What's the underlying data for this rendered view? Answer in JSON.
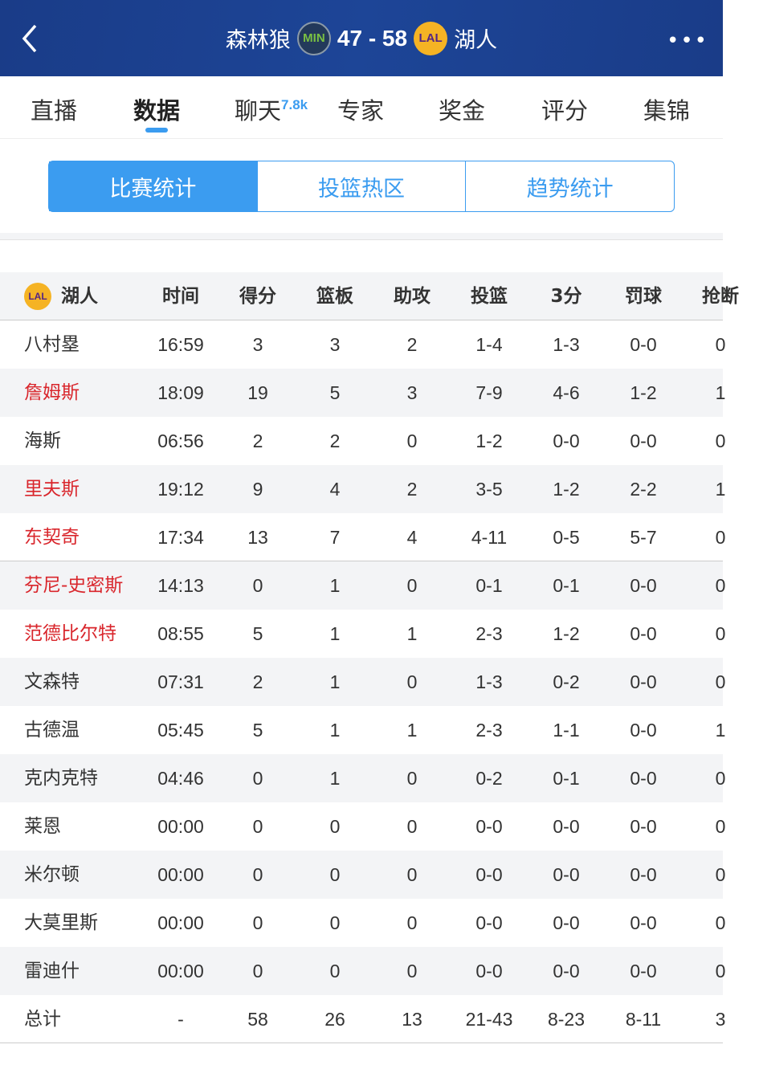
{
  "header": {
    "home_team": "森林狼",
    "home_abbr": "MIN",
    "score": "47 - 58",
    "away_abbr": "LAL",
    "away_team": "湖人",
    "back_icon": "chevron-left-icon",
    "more_icon": "more-dots-icon"
  },
  "tabs": [
    {
      "label": "直播"
    },
    {
      "label": "数据",
      "active": true
    },
    {
      "label": "聊天",
      "badge": "7.8k"
    },
    {
      "label": "专家"
    },
    {
      "label": "奖金"
    },
    {
      "label": "评分"
    },
    {
      "label": "集锦"
    }
  ],
  "segments": [
    {
      "label": "比赛统计",
      "active": true
    },
    {
      "label": "投篮热区"
    },
    {
      "label": "趋势统计"
    }
  ],
  "table": {
    "team": "湖人",
    "team_abbr": "LAL",
    "columns": [
      "时间",
      "得分",
      "篮板",
      "助攻",
      "投篮",
      "3分",
      "罚球",
      "抢断"
    ],
    "rows": [
      {
        "name": "八村塁",
        "highlight": false,
        "stats": [
          "16:59",
          "3",
          "3",
          "2",
          "1-4",
          "1-3",
          "0-0",
          "0"
        ]
      },
      {
        "name": "詹姆斯",
        "highlight": true,
        "stats": [
          "18:09",
          "19",
          "5",
          "3",
          "7-9",
          "4-6",
          "1-2",
          "1"
        ]
      },
      {
        "name": "海斯",
        "highlight": false,
        "stats": [
          "06:56",
          "2",
          "2",
          "0",
          "1-2",
          "0-0",
          "0-0",
          "0"
        ]
      },
      {
        "name": "里夫斯",
        "highlight": true,
        "stats": [
          "19:12",
          "9",
          "4",
          "2",
          "3-5",
          "1-2",
          "2-2",
          "1"
        ]
      },
      {
        "name": "东契奇",
        "highlight": true,
        "stats": [
          "17:34",
          "13",
          "7",
          "4",
          "4-11",
          "0-5",
          "5-7",
          "0"
        ]
      },
      {
        "name": "芬尼-史密斯",
        "highlight": true,
        "stats": [
          "14:13",
          "0",
          "1",
          "0",
          "0-1",
          "0-1",
          "0-0",
          "0"
        ]
      },
      {
        "name": "范德比尔特",
        "highlight": true,
        "stats": [
          "08:55",
          "5",
          "1",
          "1",
          "2-3",
          "1-2",
          "0-0",
          "0"
        ]
      },
      {
        "name": "文森特",
        "highlight": false,
        "stats": [
          "07:31",
          "2",
          "1",
          "0",
          "1-3",
          "0-2",
          "0-0",
          "0"
        ]
      },
      {
        "name": "古德温",
        "highlight": false,
        "stats": [
          "05:45",
          "5",
          "1",
          "1",
          "2-3",
          "1-1",
          "0-0",
          "1"
        ]
      },
      {
        "name": "克内克特",
        "highlight": false,
        "stats": [
          "04:46",
          "0",
          "1",
          "0",
          "0-2",
          "0-1",
          "0-0",
          "0"
        ]
      },
      {
        "name": "莱恩",
        "highlight": false,
        "stats": [
          "00:00",
          "0",
          "0",
          "0",
          "0-0",
          "0-0",
          "0-0",
          "0"
        ]
      },
      {
        "name": "米尔顿",
        "highlight": false,
        "stats": [
          "00:00",
          "0",
          "0",
          "0",
          "0-0",
          "0-0",
          "0-0",
          "0"
        ]
      },
      {
        "name": "大莫里斯",
        "highlight": false,
        "stats": [
          "00:00",
          "0",
          "0",
          "0",
          "0-0",
          "0-0",
          "0-0",
          "0"
        ]
      },
      {
        "name": "雷迪什",
        "highlight": false,
        "stats": [
          "00:00",
          "0",
          "0",
          "0",
          "0-0",
          "0-0",
          "0-0",
          "0"
        ]
      }
    ],
    "total": {
      "name": "总计",
      "stats": [
        "-",
        "58",
        "26",
        "13",
        "21-43",
        "8-23",
        "8-11",
        "3"
      ]
    }
  },
  "colors": {
    "header_bg": "#1d4597",
    "accent": "#3b9cf0",
    "starter_highlight": "#d9262c"
  }
}
